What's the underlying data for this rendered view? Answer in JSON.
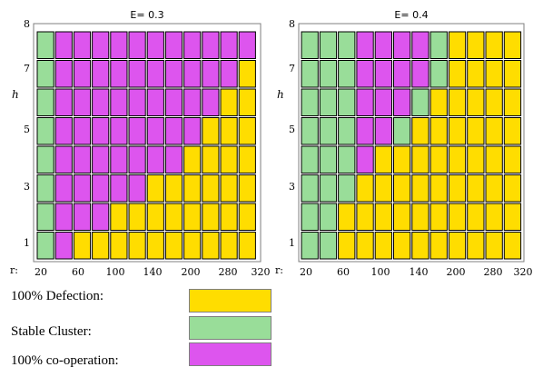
{
  "colors": {
    "defection": "#ffdd00",
    "cluster": "#99dd99",
    "cooperation": "#dd55ee",
    "cell_border": "#000000",
    "frame": "#7f7f7f"
  },
  "legend": [
    {
      "label": "100% Defection:",
      "state": "D",
      "color": "#ffdd00"
    },
    {
      "label": "Stable Cluster:",
      "state": "C",
      "color": "#99dd99"
    },
    {
      "label": "100% co-operation:",
      "state": "P",
      "color": "#dd55ee"
    }
  ],
  "chart_data": [
    {
      "type": "heatmap",
      "title": "E= 0.3",
      "xlabel": "r:",
      "ylabel": "h",
      "x_ticks": [
        "20",
        "60",
        "100",
        "140",
        "200",
        "280",
        "320"
      ],
      "y_ticks": [
        "1",
        "3",
        "5",
        "7",
        "8"
      ],
      "columns": 12,
      "rows": 8,
      "state_codes": {
        "D": "100% Defection",
        "C": "Stable Cluster",
        "P": "100% co-operation"
      },
      "grid_top_to_bottom": [
        [
          "C",
          "P",
          "P",
          "P",
          "P",
          "P",
          "P",
          "P",
          "P",
          "P",
          "P",
          "P"
        ],
        [
          "C",
          "P",
          "P",
          "P",
          "P",
          "P",
          "P",
          "P",
          "P",
          "P",
          "P",
          "D"
        ],
        [
          "C",
          "P",
          "P",
          "P",
          "P",
          "P",
          "P",
          "P",
          "P",
          "P",
          "D",
          "D"
        ],
        [
          "C",
          "P",
          "P",
          "P",
          "P",
          "P",
          "P",
          "P",
          "P",
          "D",
          "D",
          "D"
        ],
        [
          "C",
          "P",
          "P",
          "P",
          "P",
          "P",
          "P",
          "P",
          "D",
          "D",
          "D",
          "D"
        ],
        [
          "C",
          "P",
          "P",
          "P",
          "P",
          "P",
          "D",
          "D",
          "D",
          "D",
          "D",
          "D"
        ],
        [
          "C",
          "P",
          "P",
          "P",
          "D",
          "D",
          "D",
          "D",
          "D",
          "D",
          "D",
          "D"
        ],
        [
          "C",
          "P",
          "D",
          "D",
          "D",
          "D",
          "D",
          "D",
          "D",
          "D",
          "D",
          "D"
        ]
      ]
    },
    {
      "type": "heatmap",
      "title": "E= 0.4",
      "xlabel": "r:",
      "ylabel": "h",
      "x_ticks": [
        "20",
        "60",
        "100",
        "140",
        "200",
        "280",
        "320"
      ],
      "y_ticks": [
        "1",
        "3",
        "5",
        "7",
        "8"
      ],
      "columns": 12,
      "rows": 8,
      "state_codes": {
        "D": "100% Defection",
        "C": "Stable Cluster",
        "P": "100% co-operation"
      },
      "grid_top_to_bottom": [
        [
          "C",
          "C",
          "C",
          "P",
          "P",
          "P",
          "P",
          "C",
          "D",
          "D",
          "D",
          "D"
        ],
        [
          "C",
          "C",
          "C",
          "P",
          "P",
          "P",
          "P",
          "C",
          "D",
          "D",
          "D",
          "D"
        ],
        [
          "C",
          "C",
          "C",
          "P",
          "P",
          "P",
          "C",
          "D",
          "D",
          "D",
          "D",
          "D"
        ],
        [
          "C",
          "C",
          "C",
          "P",
          "P",
          "C",
          "D",
          "D",
          "D",
          "D",
          "D",
          "D"
        ],
        [
          "C",
          "C",
          "C",
          "P",
          "D",
          "D",
          "D",
          "D",
          "D",
          "D",
          "D",
          "D"
        ],
        [
          "C",
          "C",
          "C",
          "D",
          "D",
          "D",
          "D",
          "D",
          "D",
          "D",
          "D",
          "D"
        ],
        [
          "C",
          "C",
          "D",
          "D",
          "D",
          "D",
          "D",
          "D",
          "D",
          "D",
          "D",
          "D"
        ],
        [
          "C",
          "C",
          "D",
          "D",
          "D",
          "D",
          "D",
          "D",
          "D",
          "D",
          "D",
          "D"
        ]
      ]
    }
  ]
}
